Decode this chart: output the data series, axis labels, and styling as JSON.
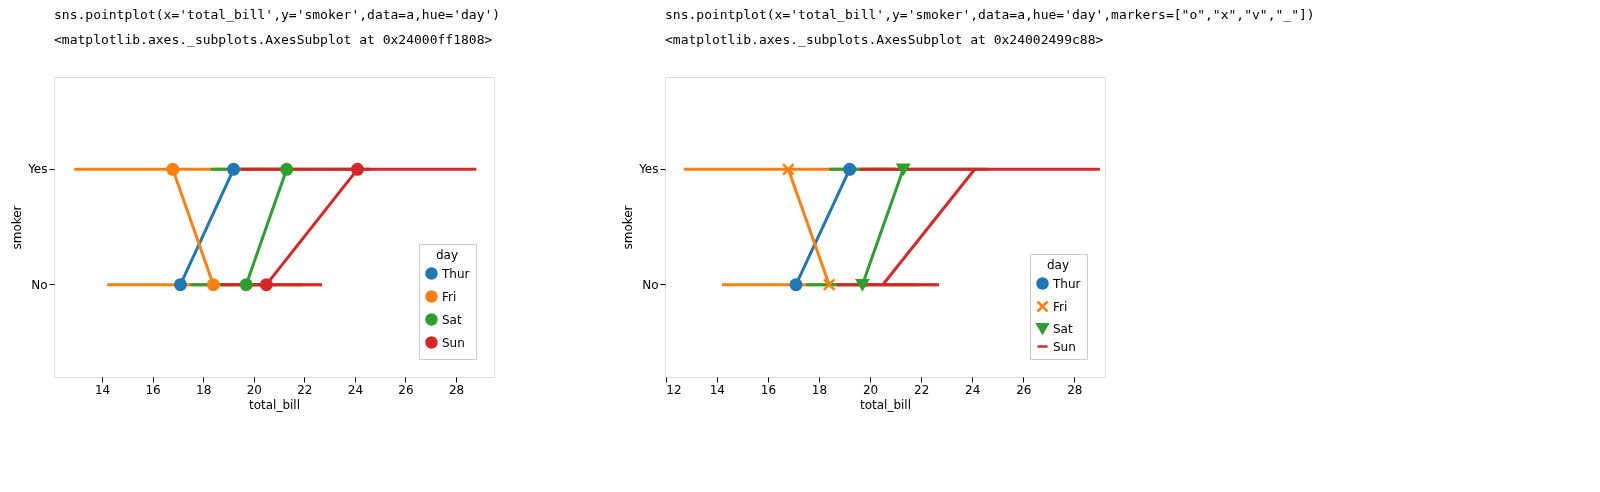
{
  "chart_data": [
    {
      "type": "line",
      "orientation": "horizontal",
      "categories": [
        "Yes",
        "No"
      ],
      "xlim": [
        12.1,
        29.5
      ],
      "xticks": [
        14,
        16,
        18,
        20,
        22,
        24,
        26,
        28
      ],
      "xlabel": "total_bill",
      "ylabel": "smoker",
      "legend_title": "day",
      "legend": "bottom right",
      "grid": false,
      "marker": "circle",
      "annotations": [
        "sns.pointplot(x='total_bill',y='smoker',data=a,hue='day')",
        "<matplotlib.axes._subplots.AxesSubplot at 0x24000ff1808>"
      ],
      "series": [
        {
          "name": "Thur",
          "color": "#1f77b4",
          "values": [
            19.2,
            17.1
          ]
        },
        {
          "name": "Fri",
          "color": "#ff7f0e",
          "values": [
            16.8,
            18.4
          ],
          "errors": [
            [
              12.9,
              21.0
            ],
            [
              14.2,
              22.6
            ]
          ]
        },
        {
          "name": "Sat",
          "color": "#2ca02c",
          "values": [
            21.3,
            19.7
          ],
          "errors": [
            [
              18.3,
              24.6
            ],
            [
              17.5,
              21.9
            ]
          ]
        },
        {
          "name": "Sun",
          "color": "#d62728",
          "values": [
            24.1,
            20.5
          ],
          "errors": [
            [
              19.5,
              28.8
            ],
            [
              18.7,
              22.7
            ]
          ]
        }
      ]
    },
    {
      "type": "line",
      "orientation": "horizontal",
      "categories": [
        "Yes",
        "No"
      ],
      "xlim": [
        11.97,
        29.2
      ],
      "xticks": [
        12,
        14,
        16,
        18,
        20,
        22,
        24,
        26,
        28
      ],
      "xlabel": "total_bill",
      "ylabel": "smoker",
      "legend_title": "day",
      "legend": "bottom right",
      "grid": false,
      "annotations": [
        "sns.pointplot(x='total_bill',y='smoker',data=a,hue='day',markers=[\"o\",\"x\",\"v\",\"_\"])",
        "<matplotlib.axes._subplots.AxesSubplot at 0x24002499c88>"
      ],
      "series": [
        {
          "name": "Thur",
          "color": "#1f77b4",
          "marker": "circle",
          "values": [
            19.2,
            17.1
          ]
        },
        {
          "name": "Fri",
          "color": "#ff7f0e",
          "marker": "cross",
          "values": [
            16.8,
            18.4
          ],
          "errors": [
            [
              12.7,
              21.0
            ],
            [
              14.2,
              22.6
            ]
          ]
        },
        {
          "name": "Sat",
          "color": "#2ca02c",
          "marker": "triangle",
          "values": [
            21.3,
            19.7
          ],
          "errors": [
            [
              18.4,
              24.6
            ],
            [
              17.5,
              21.9
            ]
          ]
        },
        {
          "name": "Sun",
          "color": "#d62728",
          "marker": "none",
          "values": [
            24.1,
            20.5
          ],
          "errors": [
            [
              19.6,
              29.0
            ],
            [
              18.7,
              22.7
            ]
          ]
        }
      ]
    }
  ]
}
